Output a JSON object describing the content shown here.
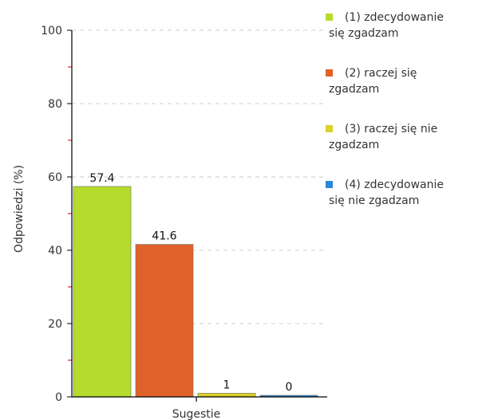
{
  "chart_data": {
    "type": "bar",
    "title": "",
    "xlabel": "Sugestie",
    "ylabel": "Odpowiedzi (%)",
    "ylim": [
      0,
      100
    ],
    "yticks": [
      0,
      20,
      40,
      60,
      80,
      100
    ],
    "grid": true,
    "legend_position": "right",
    "categories": [
      "Sugestie"
    ],
    "series": [
      {
        "name": "(1) zdecydowanie się zgadzam",
        "values": [
          57.4
        ],
        "color": "#b5dc2c",
        "label": "57.4"
      },
      {
        "name": "(2) raczej się zgadzam",
        "values": [
          41.6
        ],
        "color": "#e0622a",
        "label": "41.6"
      },
      {
        "name": "(3) raczej się nie zgadzam",
        "values": [
          1
        ],
        "color": "#d8d22a",
        "label": "1"
      },
      {
        "name": "(4) zdecydowanie się nie zgadzam",
        "values": [
          0
        ],
        "color": "#2a86d6",
        "label": "0"
      }
    ],
    "legend": [
      {
        "lines": [
          "(1) zdecydowanie",
          "się zgadzam"
        ],
        "color": "#b5dc2c"
      },
      {
        "lines": [
          "(2) raczej się",
          "zgadzam"
        ],
        "color": "#e0622a"
      },
      {
        "lines": [
          "(3) raczej się nie",
          "zgadzam"
        ],
        "color": "#d8d22a"
      },
      {
        "lines": [
          "(4) zdecydowanie",
          "się nie zgadzam"
        ],
        "color": "#2a86d6"
      }
    ],
    "colors": {
      "axis": "#000000",
      "minor_tick": "#cc0000",
      "grid": "#cccccc"
    }
  }
}
